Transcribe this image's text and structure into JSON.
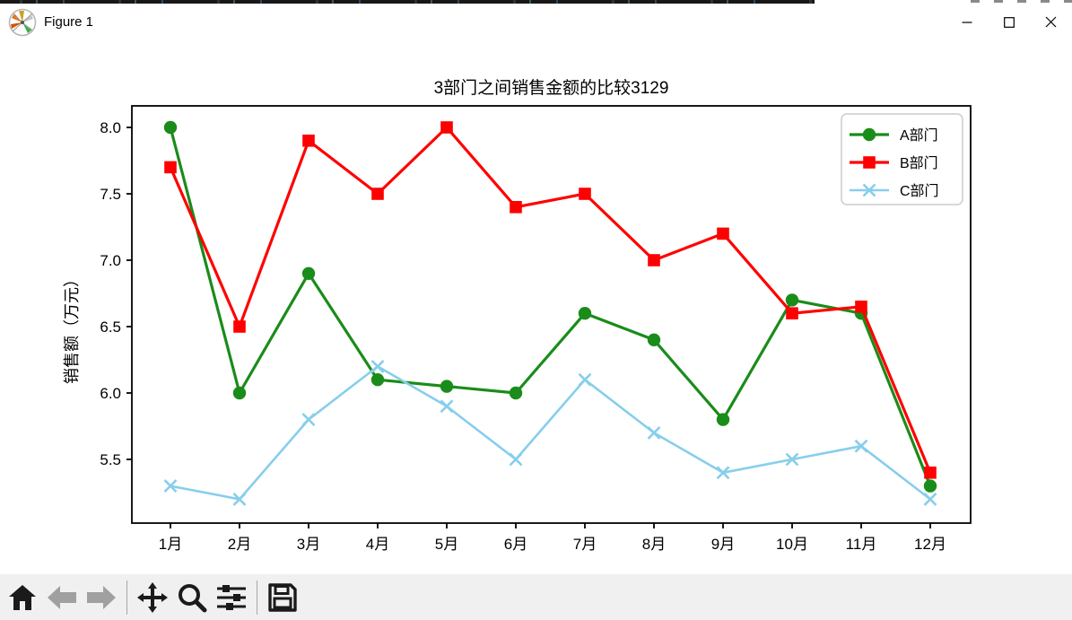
{
  "window": {
    "title": "Figure 1",
    "icon": "matplotlib-logo",
    "controls": {
      "minimize": "minimize",
      "maximize": "maximize",
      "close": "close"
    }
  },
  "toolbar": {
    "buttons": [
      {
        "id": "home",
        "icon": "home-icon",
        "enabled": true
      },
      {
        "id": "back",
        "icon": "back-arrow-icon",
        "enabled": false
      },
      {
        "id": "forward",
        "icon": "forward-arrow-icon",
        "enabled": false
      },
      {
        "id": "pan",
        "icon": "pan-arrows-icon",
        "enabled": true
      },
      {
        "id": "zoom",
        "icon": "zoom-magnifier-icon",
        "enabled": true
      },
      {
        "id": "configure-subplots",
        "icon": "sliders-icon",
        "enabled": true
      },
      {
        "id": "save",
        "icon": "save-floppy-icon",
        "enabled": true
      }
    ]
  },
  "chart_data": {
    "type": "line",
    "title": "3部门之间销售金额的比较3129",
    "xlabel": "",
    "ylabel": "销售额（万元）",
    "categories": [
      "1月",
      "2月",
      "3月",
      "4月",
      "5月",
      "6月",
      "7月",
      "8月",
      "9月",
      "10月",
      "11月",
      "12月"
    ],
    "series": [
      {
        "name": "A部门",
        "color": "#1a8c1a",
        "marker": "circle",
        "values": [
          8.0,
          6.0,
          6.9,
          6.1,
          6.05,
          6.0,
          6.6,
          6.4,
          5.8,
          6.7,
          6.6,
          5.3
        ]
      },
      {
        "name": "B部门",
        "color": "#ff0000",
        "marker": "square",
        "values": [
          7.7,
          6.5,
          7.9,
          7.5,
          8.0,
          7.4,
          7.5,
          7.0,
          7.2,
          6.6,
          6.65,
          5.4
        ]
      },
      {
        "name": "C部门",
        "color": "#87ceeb",
        "marker": "x",
        "values": [
          5.3,
          5.2,
          5.8,
          6.2,
          5.9,
          5.5,
          6.1,
          5.7,
          5.4,
          5.5,
          5.6,
          5.2
        ]
      }
    ],
    "yticks": [
      5.5,
      6.0,
      6.5,
      7.0,
      7.5,
      8.0
    ],
    "ylim": [
      5.05,
      8.15
    ],
    "legend_position": "upper right",
    "grid": false
  },
  "colors": {
    "series_a": "#1a8c1a",
    "series_b": "#ff0000",
    "series_c": "#87ceeb",
    "axis": "#000000",
    "toolbar_bg": "#f0f0f0",
    "disabled_icon": "#a0a0a0",
    "icon": "#1a1a1a"
  }
}
